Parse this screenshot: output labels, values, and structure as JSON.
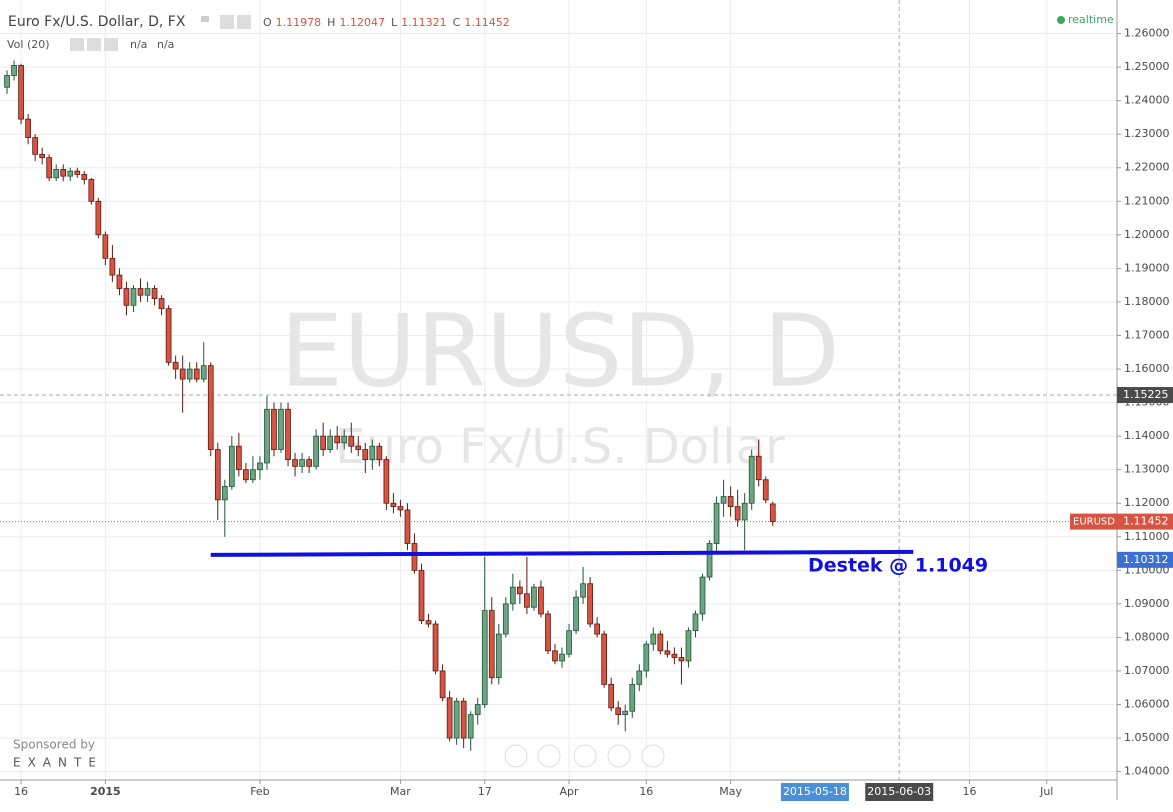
{
  "chart_data": {
    "type": "candlestick",
    "title": "Euro Fx/U.S. Dollar, D, FX",
    "legend_ohlc": [
      {
        "name": "O",
        "value": 1.11978
      },
      {
        "name": "H",
        "value": 1.12047
      },
      {
        "name": "L",
        "value": 1.11321
      },
      {
        "name": "C",
        "value": 1.11452
      }
    ],
    "volume": {
      "name": "Vol (20)",
      "values": [
        "n/a",
        "n/a"
      ]
    },
    "status": "realtime",
    "watermark": [
      "EURUSD, D",
      "Euro Fx/U.S. Dollar"
    ],
    "sponsor": [
      "Sponsored by",
      "EXANTE"
    ],
    "up_color": "#6ba583",
    "down_color": "#d75442",
    "candles": [
      [
        1.244,
        1.249,
        1.242,
        1.2475
      ],
      [
        1.2475,
        1.252,
        1.246,
        1.2505
      ],
      [
        1.2505,
        1.251,
        1.233,
        1.2345
      ],
      [
        1.2345,
        1.236,
        1.227,
        1.229
      ],
      [
        1.229,
        1.23,
        1.222,
        1.224
      ],
      [
        1.224,
        1.226,
        1.221,
        1.223
      ],
      [
        1.223,
        1.224,
        1.216,
        1.217
      ],
      [
        1.217,
        1.221,
        1.216,
        1.2195
      ],
      [
        1.2195,
        1.221,
        1.216,
        1.2175
      ],
      [
        1.2175,
        1.22,
        1.216,
        1.219
      ],
      [
        1.219,
        1.22,
        1.217,
        1.218
      ],
      [
        1.218,
        1.219,
        1.215,
        1.2165
      ],
      [
        1.2165,
        1.217,
        1.209,
        1.21
      ],
      [
        1.21,
        1.211,
        1.199,
        1.2
      ],
      [
        1.2,
        1.201,
        1.191,
        1.193
      ],
      [
        1.193,
        1.197,
        1.186,
        1.188
      ],
      [
        1.188,
        1.19,
        1.182,
        1.184
      ],
      [
        1.184,
        1.186,
        1.176,
        1.179
      ],
      [
        1.179,
        1.185,
        1.177,
        1.184
      ],
      [
        1.184,
        1.187,
        1.18,
        1.182
      ],
      [
        1.182,
        1.186,
        1.18,
        1.184
      ],
      [
        1.184,
        1.185,
        1.179,
        1.181
      ],
      [
        1.181,
        1.182,
        1.176,
        1.178
      ],
      [
        1.178,
        1.179,
        1.161,
        1.162
      ],
      [
        1.162,
        1.164,
        1.157,
        1.16
      ],
      [
        1.16,
        1.164,
        1.147,
        1.157
      ],
      [
        1.157,
        1.162,
        1.156,
        1.16
      ],
      [
        1.16,
        1.162,
        1.156,
        1.157
      ],
      [
        1.157,
        1.168,
        1.156,
        1.161
      ],
      [
        1.161,
        1.162,
        1.134,
        1.136
      ],
      [
        1.136,
        1.138,
        1.115,
        1.121
      ],
      [
        1.121,
        1.127,
        1.11,
        1.125
      ],
      [
        1.125,
        1.14,
        1.124,
        1.137
      ],
      [
        1.137,
        1.141,
        1.128,
        1.13
      ],
      [
        1.13,
        1.132,
        1.126,
        1.127
      ],
      [
        1.127,
        1.134,
        1.126,
        1.13
      ],
      [
        1.13,
        1.134,
        1.127,
        1.132
      ],
      [
        1.132,
        1.152,
        1.13,
        1.148
      ],
      [
        1.148,
        1.15,
        1.134,
        1.136
      ],
      [
        1.136,
        1.15,
        1.135,
        1.148
      ],
      [
        1.148,
        1.15,
        1.131,
        1.133
      ],
      [
        1.133,
        1.135,
        1.128,
        1.131
      ],
      [
        1.131,
        1.135,
        1.129,
        1.133
      ],
      [
        1.133,
        1.134,
        1.129,
        1.131
      ],
      [
        1.131,
        1.142,
        1.13,
        1.14
      ],
      [
        1.14,
        1.144,
        1.134,
        1.136
      ],
      [
        1.136,
        1.142,
        1.135,
        1.14
      ],
      [
        1.14,
        1.143,
        1.136,
        1.138
      ],
      [
        1.138,
        1.142,
        1.136,
        1.14
      ],
      [
        1.14,
        1.144,
        1.135,
        1.137
      ],
      [
        1.137,
        1.14,
        1.134,
        1.136
      ],
      [
        1.136,
        1.138,
        1.129,
        1.133
      ],
      [
        1.133,
        1.139,
        1.13,
        1.137
      ],
      [
        1.137,
        1.138,
        1.131,
        1.133
      ],
      [
        1.133,
        1.134,
        1.118,
        1.12
      ],
      [
        1.12,
        1.123,
        1.117,
        1.119
      ],
      [
        1.119,
        1.121,
        1.116,
        1.118
      ],
      [
        1.118,
        1.12,
        1.106,
        1.108
      ],
      [
        1.108,
        1.111,
        1.099,
        1.1
      ],
      [
        1.1,
        1.102,
        1.084,
        1.085
      ],
      [
        1.085,
        1.087,
        1.083,
        1.084
      ],
      [
        1.084,
        1.085,
        1.069,
        1.07
      ],
      [
        1.07,
        1.072,
        1.061,
        1.062
      ],
      [
        1.062,
        1.064,
        1.049,
        1.05
      ],
      [
        1.05,
        1.062,
        1.048,
        1.061
      ],
      [
        1.061,
        1.062,
        1.047,
        1.05
      ],
      [
        1.05,
        1.058,
        1.0462,
        1.057
      ],
      [
        1.057,
        1.062,
        1.054,
        1.06
      ],
      [
        1.06,
        1.104,
        1.059,
        1.088
      ],
      [
        1.088,
        1.092,
        1.066,
        1.068
      ],
      [
        1.068,
        1.084,
        1.066,
        1.081
      ],
      [
        1.081,
        1.092,
        1.08,
        1.09
      ],
      [
        1.09,
        1.099,
        1.088,
        1.095
      ],
      [
        1.095,
        1.097,
        1.09,
        1.093
      ],
      [
        1.093,
        1.104,
        1.087,
        1.089
      ],
      [
        1.089,
        1.096,
        1.088,
        1.095
      ],
      [
        1.095,
        1.097,
        1.086,
        1.087
      ],
      [
        1.087,
        1.088,
        1.075,
        1.076
      ],
      [
        1.076,
        1.078,
        1.072,
        1.073
      ],
      [
        1.073,
        1.077,
        1.071,
        1.075
      ],
      [
        1.075,
        1.084,
        1.074,
        1.082
      ],
      [
        1.082,
        1.094,
        1.081,
        1.092
      ],
      [
        1.092,
        1.101,
        1.09,
        1.096
      ],
      [
        1.096,
        1.098,
        1.083,
        1.084
      ],
      [
        1.084,
        1.086,
        1.08,
        1.081
      ],
      [
        1.081,
        1.082,
        1.065,
        1.066
      ],
      [
        1.066,
        1.068,
        1.058,
        1.059
      ],
      [
        1.059,
        1.061,
        1.054,
        1.057
      ],
      [
        1.057,
        1.06,
        1.052,
        1.058
      ],
      [
        1.058,
        1.068,
        1.056,
        1.066
      ],
      [
        1.066,
        1.072,
        1.064,
        1.07
      ],
      [
        1.07,
        1.079,
        1.068,
        1.078
      ],
      [
        1.078,
        1.083,
        1.076,
        1.081
      ],
      [
        1.081,
        1.082,
        1.075,
        1.076
      ],
      [
        1.076,
        1.079,
        1.074,
        1.075
      ],
      [
        1.075,
        1.077,
        1.072,
        1.074
      ],
      [
        1.074,
        1.077,
        1.066,
        1.073
      ],
      [
        1.073,
        1.083,
        1.071,
        1.082
      ],
      [
        1.082,
        1.088,
        1.08,
        1.087
      ],
      [
        1.087,
        1.099,
        1.085,
        1.098
      ],
      [
        1.098,
        1.109,
        1.097,
        1.108
      ],
      [
        1.108,
        1.122,
        1.105,
        1.12
      ],
      [
        1.12,
        1.127,
        1.116,
        1.122
      ],
      [
        1.122,
        1.125,
        1.116,
        1.119
      ],
      [
        1.119,
        1.124,
        1.113,
        1.115
      ],
      [
        1.115,
        1.123,
        1.106,
        1.12
      ],
      [
        1.12,
        1.136,
        1.118,
        1.134
      ],
      [
        1.134,
        1.139,
        1.125,
        1.127
      ],
      [
        1.127,
        1.128,
        1.12,
        1.121
      ],
      [
        1.11978,
        1.12047,
        1.11321,
        1.11452
      ]
    ],
    "xlim": [
      -1,
      158
    ],
    "xticks": [
      {
        "value": 2,
        "label": "16"
      },
      {
        "value": 14,
        "label": "2015"
      },
      {
        "value": 36,
        "label": "Feb"
      },
      {
        "value": 56,
        "label": "Mar"
      },
      {
        "value": 68,
        "label": "17"
      },
      {
        "value": 80,
        "label": "Apr"
      },
      {
        "value": 91,
        "label": "16"
      },
      {
        "value": 103,
        "label": "May"
      },
      {
        "value": 137,
        "label": "16"
      },
      {
        "value": 148,
        "label": "Jul"
      }
    ],
    "date_markers": [
      {
        "value": 115,
        "label": "2015-05-18",
        "color": "#4a90d9"
      },
      {
        "value": 127,
        "label": "2015-06-03",
        "color": "#4a4a4a"
      }
    ],
    "ylim": [
      1.0375,
      1.27
    ],
    "yticks": [
      {
        "value": 1.26,
        "label": "1.26000"
      },
      {
        "value": 1.25,
        "label": "1.25000"
      },
      {
        "value": 1.24,
        "label": "1.24000"
      },
      {
        "value": 1.23,
        "label": "1.23000"
      },
      {
        "value": 1.22,
        "label": "1.22000"
      },
      {
        "value": 1.21,
        "label": "1.21000"
      },
      {
        "value": 1.2,
        "label": "1.20000"
      },
      {
        "value": 1.19,
        "label": "1.19000"
      },
      {
        "value": 1.18,
        "label": "1.18000"
      },
      {
        "value": 1.17,
        "label": "1.17000"
      },
      {
        "value": 1.16,
        "label": "1.16000"
      },
      {
        "value": 1.15,
        "label": "1.15000"
      },
      {
        "value": 1.14,
        "label": "1.14000"
      },
      {
        "value": 1.13,
        "label": "1.13000"
      },
      {
        "value": 1.12,
        "label": "1.12000"
      },
      {
        "value": 1.11,
        "label": "1.11000"
      },
      {
        "value": 1.1,
        "label": "1.10000"
      },
      {
        "value": 1.09,
        "label": "1.09000"
      },
      {
        "value": 1.08,
        "label": "1.08000"
      },
      {
        "value": 1.07,
        "label": "1.07000"
      },
      {
        "value": 1.06,
        "label": "1.06000"
      },
      {
        "value": 1.05,
        "label": "1.05000"
      },
      {
        "value": 1.04,
        "label": "1.04000"
      }
    ],
    "grid": true,
    "price_markers": [
      {
        "value": 1.15225,
        "color": "#4a4a4a"
      },
      {
        "name": "EURUSD",
        "value": 1.11452,
        "color": "#d75442"
      },
      {
        "value": 1.10312,
        "color": "#3b6fd4"
      }
    ],
    "support": {
      "x": [
        29,
        129
      ],
      "y": [
        1.1046,
        1.1055
      ],
      "color": "#1010e0",
      "label": "Destek @ 1.1049"
    }
  }
}
